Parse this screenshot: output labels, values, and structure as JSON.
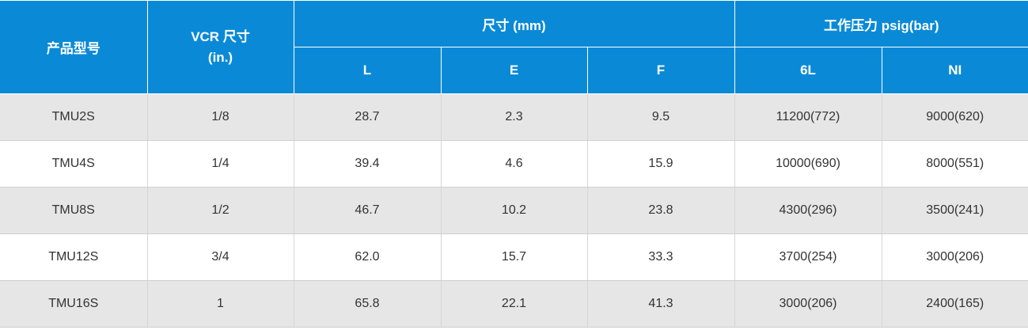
{
  "header": {
    "model": "产品型号",
    "vcr_line1": "VCR 尺寸",
    "vcr_line2": "(in.)",
    "dimensions": "尺寸 (mm)",
    "pressure": "工作压力 psig(bar)",
    "sub": [
      "L",
      "E",
      "F",
      "6L",
      "NI"
    ]
  },
  "rows": [
    [
      "TMU2S",
      "1/8",
      "28.7",
      "2.3",
      "9.5",
      "11200(772)",
      "9000(620)"
    ],
    [
      "TMU4S",
      "1/4",
      "39.4",
      "4.6",
      "15.9",
      "10000(690)",
      "8000(551)"
    ],
    [
      "TMU8S",
      "1/2",
      "46.7",
      "10.2",
      "23.8",
      "4300(296)",
      "3500(241)"
    ],
    [
      "TMU12S",
      "3/4",
      "62.0",
      "15.7",
      "33.3",
      "3700(254)",
      "3000(206)"
    ],
    [
      "TMU16S",
      "1",
      "65.8",
      "22.1",
      "41.3",
      "3000(206)",
      "2400(165)"
    ]
  ],
  "colors": {
    "header_bg": "#0a8ad6",
    "header_text": "#ffffff",
    "row_alt": "#e6e6e6",
    "row_plain": "#ffffff"
  }
}
